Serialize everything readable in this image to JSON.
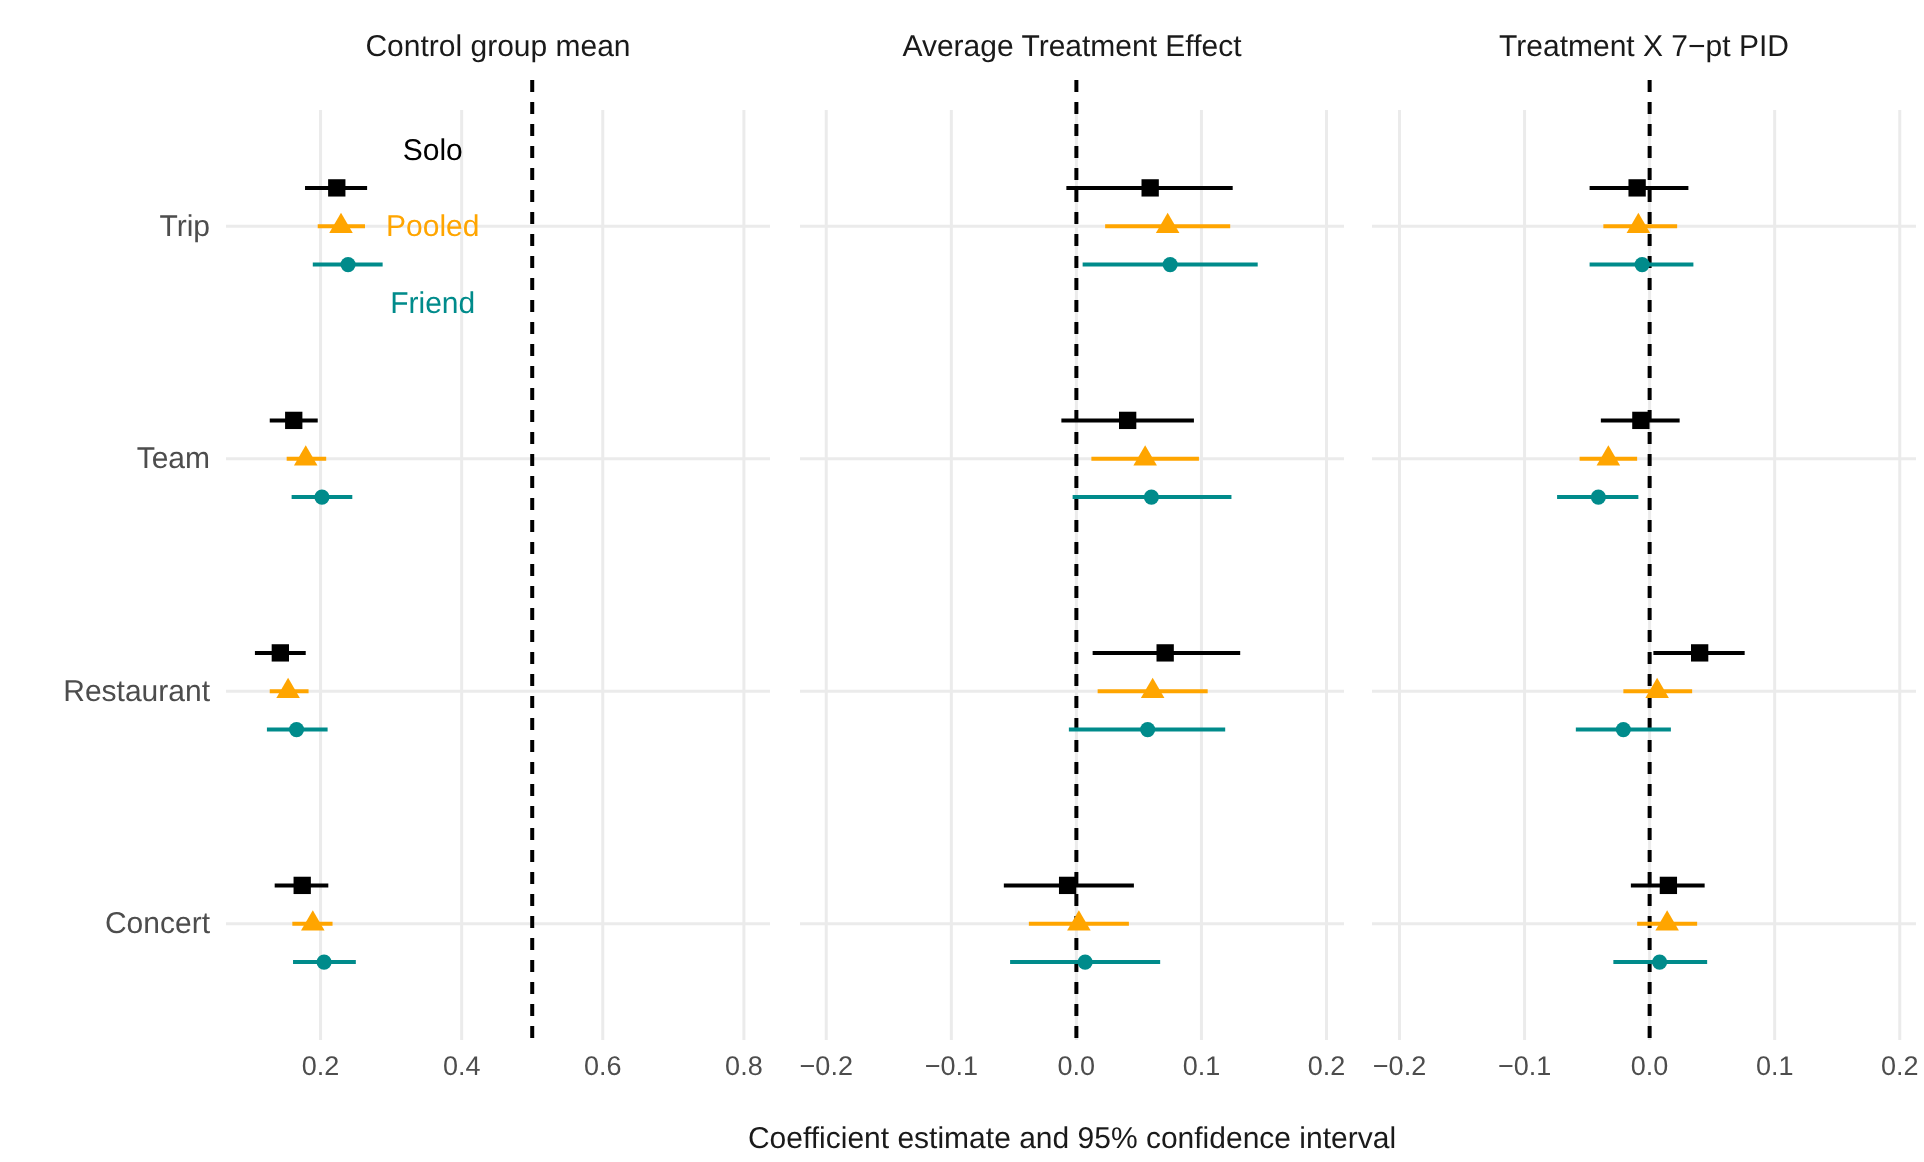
{
  "chart_data": [
    {
      "type": "scatter",
      "title": "Control group mean",
      "orientation": "horizontal",
      "categories": [
        "Trip",
        "Team",
        "Restaurant",
        "Concert"
      ],
      "xlim": [
        0.066,
        0.837
      ],
      "xticks": [
        0.2,
        0.4,
        0.6,
        0.8
      ],
      "grid": true,
      "legend": "top",
      "ref_lines": [
        {
          "axis": "x",
          "value": 0.5,
          "line_style": "dashed",
          "color": "#000000"
        }
      ],
      "series": [
        {
          "name": "Solo",
          "color": "#000000",
          "marker": "square",
          "values": [
            0.223,
            0.162,
            0.143,
            0.174
          ],
          "errors": [
            [
              0.178,
              0.266
            ],
            [
              0.128,
              0.196
            ],
            [
              0.107,
              0.179
            ],
            [
              0.135,
              0.211
            ]
          ]
        },
        {
          "name": "Pooled",
          "color": "#ffa500",
          "marker": "triangle",
          "values": [
            0.229,
            0.179,
            0.154,
            0.189
          ],
          "errors": [
            [
              0.196,
              0.263
            ],
            [
              0.152,
              0.208
            ],
            [
              0.128,
              0.183
            ],
            [
              0.16,
              0.217
            ]
          ]
        },
        {
          "name": "Friend",
          "color": "#008b8b",
          "marker": "circle",
          "values": [
            0.239,
            0.202,
            0.166,
            0.205
          ],
          "errors": [
            [
              0.189,
              0.288
            ],
            [
              0.159,
              0.245
            ],
            [
              0.124,
              0.21
            ],
            [
              0.161,
              0.25
            ]
          ]
        }
      ]
    },
    {
      "type": "scatter",
      "title": "Average Treatment Effect",
      "xlabel": "Coefficient estimate and 95% confidence interval",
      "orientation": "horizontal",
      "categories": [
        null,
        null,
        null,
        null
      ],
      "xlim": [
        -0.221,
        0.214
      ],
      "xticks": [
        {
          "value": -0.2,
          "label": "−0.2"
        },
        {
          "value": -0.1,
          "label": "−0.1"
        },
        {
          "value": 0,
          "label": "0.0"
        },
        0.1,
        0.2
      ],
      "grid": true,
      "tick_labels": "x",
      "ref_lines": [
        {
          "axis": "x",
          "value": 0,
          "line_style": "dashed",
          "color": "#000000"
        }
      ],
      "series": [
        {
          "color": "#000000",
          "marker": "square",
          "values": [
            0.059,
            0.041,
            0.071,
            -0.007
          ],
          "errors": [
            [
              -0.008,
              0.125
            ],
            [
              -0.012,
              0.094
            ],
            [
              0.013,
              0.131
            ],
            [
              -0.058,
              0.046
            ]
          ]
        },
        {
          "color": "#ffa500",
          "marker": "triangle",
          "values": [
            0.073,
            0.055,
            0.061,
            0.002
          ],
          "errors": [
            [
              0.023,
              0.123
            ],
            [
              0.012,
              0.098
            ],
            [
              0.017,
              0.105
            ],
            [
              -0.038,
              0.042
            ]
          ]
        },
        {
          "color": "#008b8b",
          "marker": "circle",
          "values": [
            0.075,
            0.06,
            0.057,
            0.007
          ],
          "errors": [
            [
              0.005,
              0.145
            ],
            [
              -0.003,
              0.124
            ],
            [
              -0.006,
              0.119
            ],
            [
              -0.053,
              0.067
            ]
          ]
        }
      ]
    },
    {
      "type": "scatter",
      "title": "Treatment X 7−pt PID",
      "orientation": "horizontal",
      "categories": [
        null,
        null,
        null,
        null
      ],
      "xlim": [
        -0.222,
        0.213
      ],
      "xticks": [
        {
          "value": -0.2,
          "label": "−0.2"
        },
        {
          "value": -0.1,
          "label": "−0.1"
        },
        {
          "value": 0,
          "label": "0.0"
        },
        0.1,
        0.2
      ],
      "grid": true,
      "tick_labels": "x",
      "ref_lines": [
        {
          "axis": "x",
          "value": 0,
          "line_style": "dashed",
          "color": "#000000"
        }
      ],
      "series": [
        {
          "color": "#000000",
          "marker": "square",
          "values": [
            -0.01,
            -0.007,
            0.04,
            0.015
          ],
          "errors": [
            [
              -0.048,
              0.031
            ],
            [
              -0.039,
              0.024
            ],
            [
              0.003,
              0.076
            ],
            [
              -0.015,
              0.044
            ]
          ]
        },
        {
          "color": "#ffa500",
          "marker": "triangle",
          "values": [
            -0.009,
            -0.033,
            0.006,
            0.014
          ],
          "errors": [
            [
              -0.037,
              0.022
            ],
            [
              -0.056,
              -0.01
            ],
            [
              -0.021,
              0.034
            ],
            [
              -0.01,
              0.038
            ]
          ]
        },
        {
          "color": "#008b8b",
          "marker": "circle",
          "values": [
            -0.006,
            -0.041,
            -0.021,
            0.008
          ],
          "errors": [
            [
              -0.048,
              0.035
            ],
            [
              -0.074,
              -0.009
            ],
            [
              -0.059,
              0.017
            ],
            [
              -0.029,
              0.046
            ]
          ]
        }
      ]
    }
  ]
}
